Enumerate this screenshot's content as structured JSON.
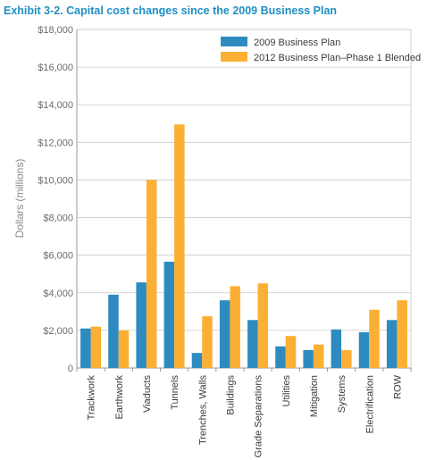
{
  "chart_data": {
    "type": "bar",
    "title": "Exhibit 3-2. Capital cost changes since the 2009 Business Plan",
    "ylabel": "Dollars (millions)",
    "xlabel": "",
    "ylim": [
      0,
      18000
    ],
    "yticks": [
      0,
      2000,
      4000,
      6000,
      8000,
      10000,
      12000,
      14000,
      16000,
      18000
    ],
    "ytick_labels": [
      "0",
      "$2,000",
      "$4,000",
      "$6,000",
      "$8,000",
      "$10,000",
      "$12,000",
      "$14,000",
      "$16,000",
      "$18,000"
    ],
    "categories": [
      "Trackwork",
      "Earthwork",
      "Viaducts",
      "Tunnels",
      "Trenches, Walls",
      "Buildings",
      "Grade Separations",
      "Utilities",
      "Mitigation",
      "Systems",
      "Electrification",
      "ROW"
    ],
    "series": [
      {
        "name": "2009 Business Plan",
        "color": "#2e8bc0",
        "values": [
          2100,
          3900,
          4550,
          5650,
          800,
          3600,
          2550,
          1150,
          950,
          2050,
          1900,
          2550
        ]
      },
      {
        "name": "2012 Business Plan–Phase 1 Blended",
        "color": "#fbb034",
        "values": [
          2200,
          2000,
          10000,
          12950,
          2750,
          4350,
          4500,
          1700,
          1250,
          950,
          3100,
          3600
        ]
      }
    ],
    "grid": true,
    "legend_position": "top-right"
  }
}
